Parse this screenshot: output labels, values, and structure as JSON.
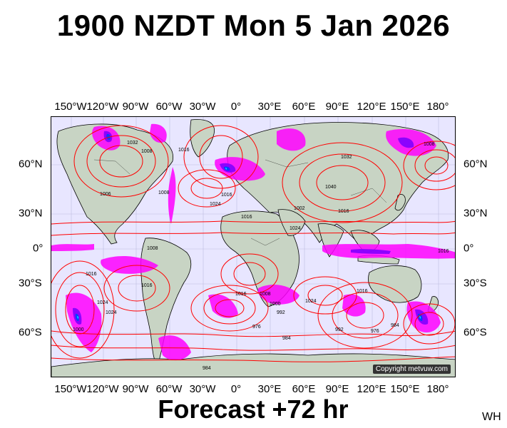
{
  "title": "1900 NZDT Mon 5 Jan 2026",
  "footer": "Forecast +72 hr",
  "corner_label": "WH",
  "copyright": "Copyright metvuw.com",
  "longitude_labels": [
    "150°W",
    "120°W",
    "90°W",
    "60°W",
    "30°W",
    "0°",
    "30°E",
    "60°E",
    "90°E",
    "120°E",
    "150°E",
    "180°"
  ],
  "latitude_labels": [
    "60°N",
    "30°N",
    "0°",
    "30°S",
    "60°S"
  ],
  "isobar_labels": [
    "1016",
    "1008",
    "1032",
    "1008",
    "1016",
    "1006",
    "1008",
    "1016",
    "1024",
    "1002",
    "1040",
    "1016",
    "1024",
    "1032",
    "1008",
    "1016",
    "1016",
    "1024",
    "1024",
    "1016",
    "1016",
    "1008",
    "1000",
    "992",
    "976",
    "984",
    "992",
    "976",
    "984",
    "1016",
    "1024",
    "1000",
    "984"
  ],
  "colors": {
    "ocean": "#e8e6ff",
    "land": "#c8d4c4",
    "isobar": "#ff0000",
    "precip_magenta": "#ff00ff",
    "precip_purple": "#8000ff",
    "precip_blue": "#0040ff",
    "precip_cyan": "#00e0ff",
    "coast": "#000000"
  }
}
